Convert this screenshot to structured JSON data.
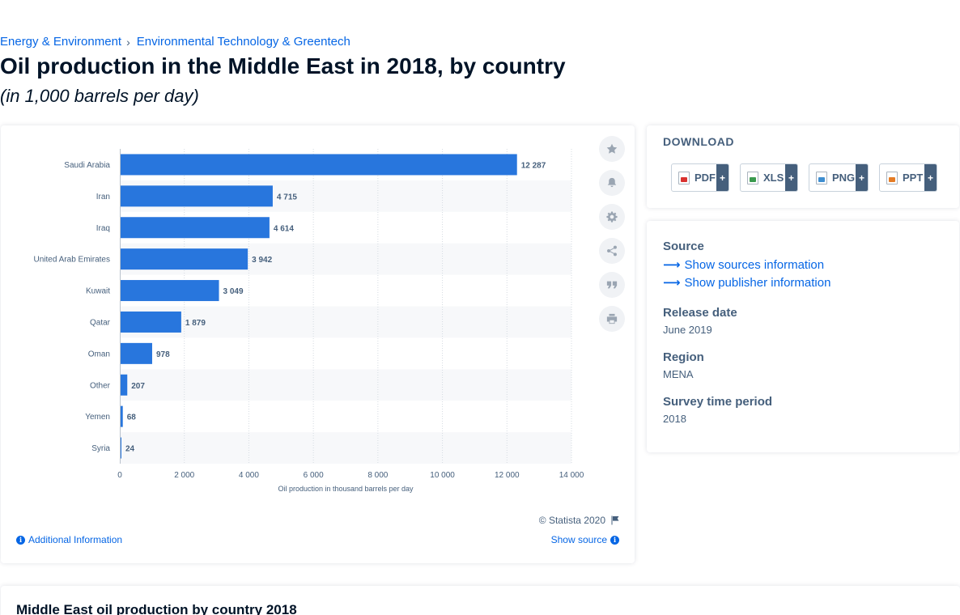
{
  "breadcrumb": {
    "items": [
      "Energy & Environment",
      "Environmental Technology & Greentech"
    ],
    "separator": "›"
  },
  "title": "Oil production in the Middle East in 2018, by country",
  "subtitle": "(in 1,000 barrels per day)",
  "chart_data": {
    "type": "bar",
    "orientation": "horizontal",
    "categories": [
      "Saudi Arabia",
      "Iran",
      "Iraq",
      "United Arab Emirates",
      "Kuwait",
      "Qatar",
      "Oman",
      "Other",
      "Yemen",
      "Syria"
    ],
    "values": [
      12287,
      4715,
      4614,
      3942,
      3049,
      1879,
      978,
      207,
      68,
      24
    ],
    "value_labels": [
      "12 287",
      "4 715",
      "4 614",
      "3 942",
      "3 049",
      "1 879",
      "978",
      "207",
      "68",
      "24"
    ],
    "xlim": [
      0,
      14000
    ],
    "xticks": [
      0,
      2000,
      4000,
      6000,
      8000,
      10000,
      12000,
      14000
    ],
    "xtick_labels": [
      "0",
      "2 000",
      "4 000",
      "6 000",
      "8 000",
      "10 000",
      "12 000",
      "14 000"
    ],
    "xlabel": "Oil production in thousand barrels per day",
    "ylabel": "",
    "grid": true,
    "bar_color": "#2876dd"
  },
  "chart_footer": {
    "copyright": "© Statista 2020",
    "additional_info": "Additional Information",
    "show_source": "Show source"
  },
  "toolbar": {
    "icons": [
      "star-icon",
      "bell-icon",
      "gear-icon",
      "share-icon",
      "quote-icon",
      "print-icon"
    ]
  },
  "download": {
    "heading": "DOWNLOAD",
    "buttons": [
      {
        "label": "PDF",
        "plus": "+"
      },
      {
        "label": "XLS",
        "plus": "+"
      },
      {
        "label": "PNG",
        "plus": "+"
      },
      {
        "label": "PPT",
        "plus": "+"
      }
    ]
  },
  "info": {
    "source_label": "Source",
    "show_sources": "Show sources information",
    "show_publisher": "Show publisher information",
    "release_label": "Release date",
    "release_value": "June 2019",
    "region_label": "Region",
    "region_value": "MENA",
    "survey_label": "Survey time period",
    "survey_value": "2018"
  },
  "bottom": {
    "title": "Middle East oil production by country 2018"
  }
}
